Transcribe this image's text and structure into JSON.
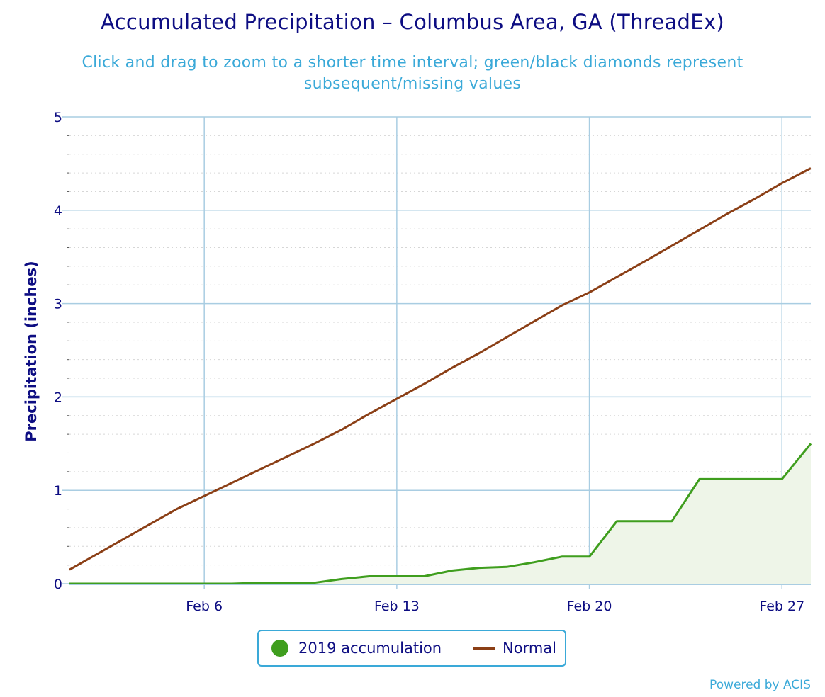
{
  "title": "Accumulated Precipitation – Columbus Area, GA (ThreadEx)",
  "subtitle": "Click and drag to zoom to a shorter time interval; green/black diamonds represent subsequent/missing values",
  "credits": "Powered by ACIS",
  "colors": {
    "accumulation": "#3f9e1e",
    "accumulation_fill": "#eef5e8",
    "normal": "#8b3f16",
    "title": "#0d0d82",
    "subtitle": "#3aa9d8",
    "grid": "#a9cde2"
  },
  "chart_data": {
    "type": "area",
    "ylabel": "Precipitation (inches)",
    "xlabel": "",
    "ylim": [
      0,
      5
    ],
    "xlim": [
      1.1,
      28.05
    ],
    "y_ticks": [
      0,
      1,
      2,
      3,
      4,
      5
    ],
    "x_ticks": [
      {
        "day": 6,
        "label": "Feb 6"
      },
      {
        "day": 13,
        "label": "Feb 13"
      },
      {
        "day": 20,
        "label": "Feb 20"
      },
      {
        "day": 27,
        "label": "Feb 27"
      }
    ],
    "grid": true,
    "legend_position": "bottom-center",
    "series": [
      {
        "name": "2019 accumulation",
        "kind": "area",
        "x": [
          1.1,
          2,
          3,
          4,
          5,
          6,
          7,
          8,
          9,
          10,
          11,
          12,
          13,
          14,
          15,
          16,
          17,
          18,
          19,
          20,
          21,
          22,
          23,
          24,
          25,
          26,
          27,
          28.05
        ],
        "y": [
          0,
          0,
          0,
          0,
          0,
          0,
          0,
          0.01,
          0.01,
          0.01,
          0.05,
          0.08,
          0.08,
          0.08,
          0.14,
          0.17,
          0.18,
          0.23,
          0.29,
          0.29,
          0.67,
          0.67,
          0.67,
          1.12,
          1.12,
          1.12,
          1.12,
          1.5
        ]
      },
      {
        "name": "Normal",
        "kind": "line",
        "x": [
          1.1,
          5,
          10,
          11,
          12,
          14,
          15,
          16,
          17,
          18,
          19,
          20,
          22,
          23,
          25,
          26,
          27,
          28.05
        ],
        "y": [
          0.15,
          0.8,
          1.5,
          1.65,
          1.82,
          2.14,
          2.31,
          2.47,
          2.64,
          2.81,
          2.98,
          3.12,
          3.45,
          3.62,
          3.96,
          4.12,
          4.29,
          4.45
        ]
      }
    ]
  }
}
